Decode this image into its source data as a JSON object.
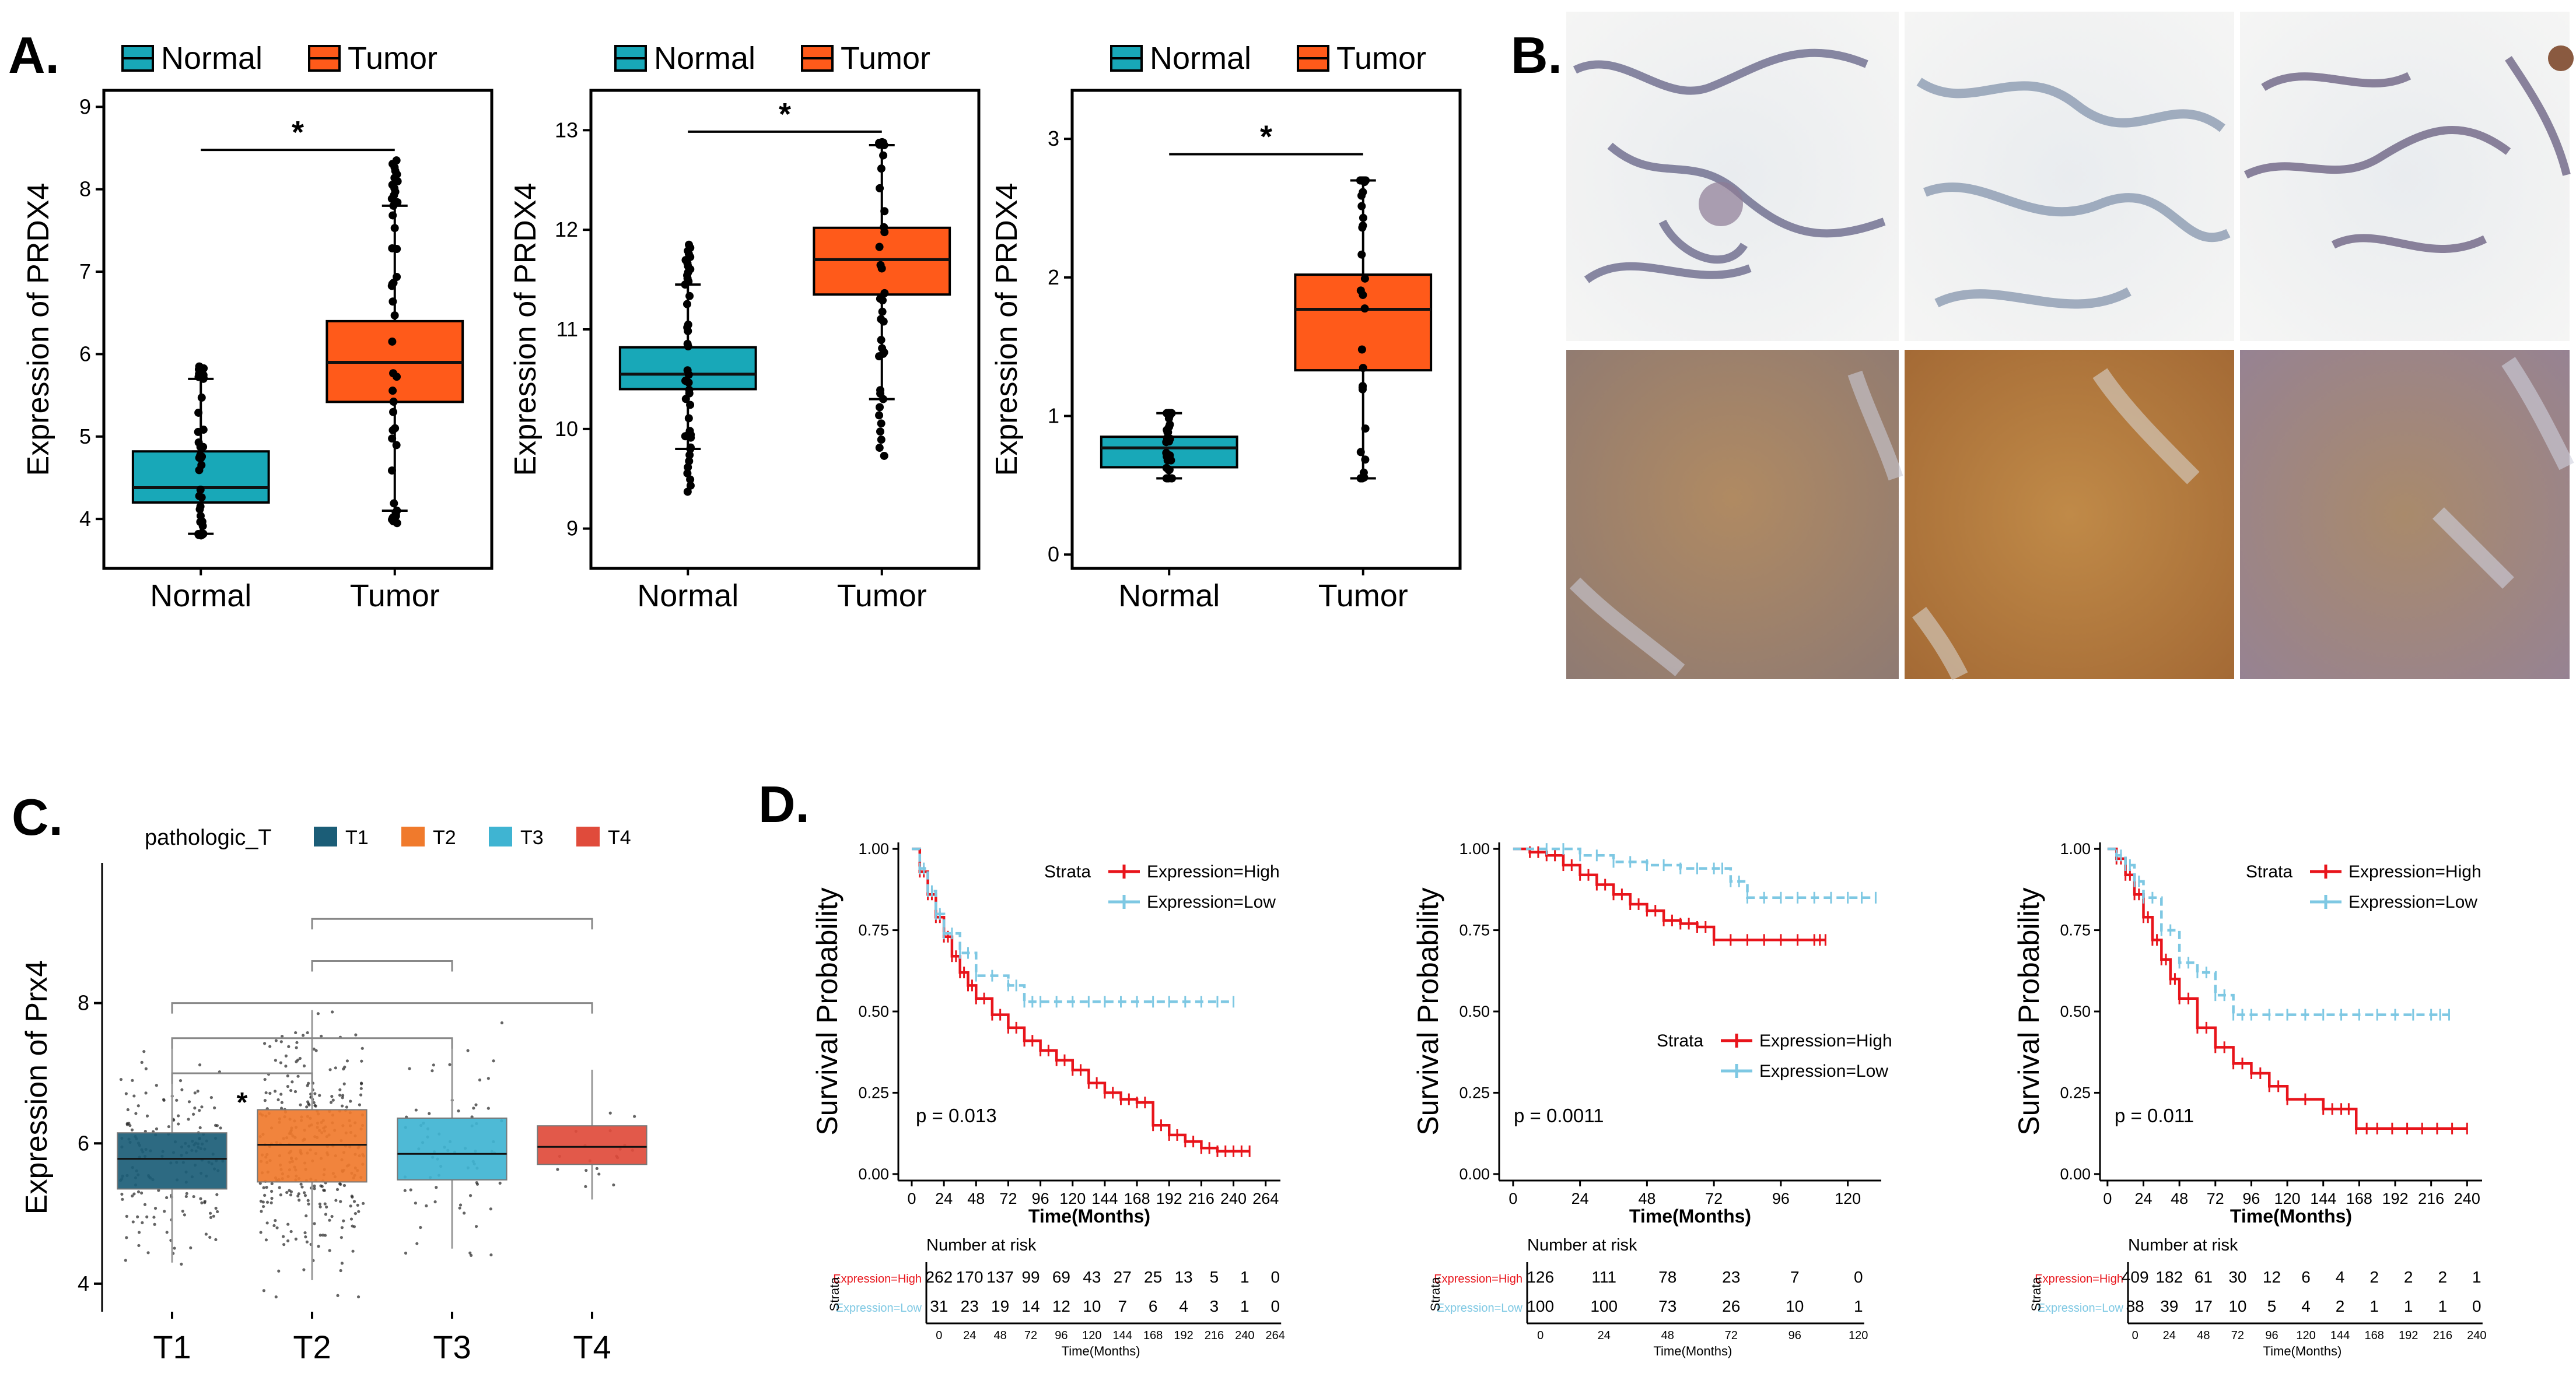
{
  "panel_labels": {
    "a": "A.",
    "b": "B.",
    "c": "C.",
    "d": "D."
  },
  "colors": {
    "normal": "#18a8b8",
    "tumor": "#ff5a1a",
    "t1": "#1b5d77",
    "t2": "#f07a2c",
    "t3": "#3fb4d2",
    "t4": "#e04b3b",
    "high": "#e8141b",
    "low": "#7ec8e3"
  },
  "ihc_images": {
    "top_row": [
      "normal-lung-ihc-1",
      "normal-lung-ihc-2",
      "normal-lung-ihc-3"
    ],
    "bottom_row": [
      "tumor-ihc-1",
      "tumor-ihc-2",
      "tumor-ihc-3"
    ]
  },
  "chart_data": [
    {
      "type": "box",
      "id": "A1",
      "legend": [
        "Normal",
        "Tumor"
      ],
      "ylabel": "Expression of PRDX4",
      "categories": [
        "Normal",
        "Tumor"
      ],
      "ylim": [
        3.4,
        9.2
      ],
      "yticks": [
        4,
        5,
        6,
        7,
        8,
        9
      ],
      "boxes": [
        {
          "q1": 4.2,
          "median": 4.38,
          "q3": 4.82,
          "lo": 3.82,
          "hi": 5.7
        },
        {
          "q1": 5.42,
          "median": 5.9,
          "q3": 6.4,
          "lo": 4.1,
          "hi": 7.8
        }
      ],
      "outlier_hi": [
        5.85,
        8.35
      ],
      "outlier_lo": [
        3.8,
        3.95
      ],
      "signif": "*"
    },
    {
      "type": "box",
      "id": "A2",
      "legend": [
        "Normal",
        "Tumor"
      ],
      "ylabel": "Expression of PRDX4",
      "categories": [
        "Normal",
        "Tumor"
      ],
      "ylim": [
        8.6,
        13.4
      ],
      "yticks": [
        9,
        10,
        11,
        12,
        13
      ],
      "boxes": [
        {
          "q1": 10.4,
          "median": 10.55,
          "q3": 10.82,
          "lo": 9.8,
          "hi": 11.45
        },
        {
          "q1": 11.35,
          "median": 11.7,
          "q3": 12.02,
          "lo": 10.3,
          "hi": 12.85
        }
      ],
      "outlier_hi": [
        11.85,
        12.88
      ],
      "outlier_lo": [
        9.37,
        9.73
      ],
      "signif": "*"
    },
    {
      "type": "box",
      "id": "A3",
      "legend": [
        "Normal",
        "Tumor"
      ],
      "ylabel": "Expression of PRDX4",
      "categories": [
        "Normal",
        "Tumor"
      ],
      "ylim": [
        -0.1,
        3.35
      ],
      "yticks": [
        0,
        1,
        2,
        3
      ],
      "boxes": [
        {
          "q1": 0.63,
          "median": 0.77,
          "q3": 0.85,
          "lo": 0.55,
          "hi": 1.02
        },
        {
          "q1": 1.33,
          "median": 1.77,
          "q3": 2.02,
          "lo": 0.55,
          "hi": 2.7
        }
      ],
      "signif": "*"
    },
    {
      "type": "box",
      "id": "C",
      "legend_title": "pathologic_T",
      "legend": [
        "T1",
        "T2",
        "T3",
        "T4"
      ],
      "ylabel": "Expression of Prx4",
      "categories": [
        "T1",
        "T2",
        "T3",
        "T4"
      ],
      "ylim": [
        3.6,
        10.0
      ],
      "yticks": [
        4,
        6,
        8
      ],
      "boxes": [
        {
          "q1": 5.35,
          "median": 5.78,
          "q3": 6.15,
          "lo": 4.3,
          "hi": 7.5
        },
        {
          "q1": 5.45,
          "median": 5.98,
          "q3": 6.48,
          "lo": 4.05,
          "hi": 7.9
        },
        {
          "q1": 5.48,
          "median": 5.85,
          "q3": 6.36,
          "lo": 4.5,
          "hi": 7.4
        },
        {
          "q1": 5.7,
          "median": 5.95,
          "q3": 6.25,
          "lo": 5.2,
          "hi": 7.05
        }
      ],
      "comparisons": [
        {
          "from": 0,
          "to": 1,
          "y": 7.0,
          "label": "*"
        },
        {
          "from": 0,
          "to": 2,
          "y": 7.5,
          "label": ""
        },
        {
          "from": 0,
          "to": 3,
          "y": 8.0,
          "label": ""
        },
        {
          "from": 1,
          "to": 2,
          "y": 8.6,
          "label": ""
        },
        {
          "from": 1,
          "to": 3,
          "y": 9.2,
          "label": ""
        }
      ]
    },
    {
      "type": "line",
      "id": "D1",
      "ylabel": "Survival Probability",
      "xlabel": "Time(Months)",
      "legend_title": "Strata",
      "legend": [
        "Expression=High",
        "Expression=Low"
      ],
      "xticks": [
        0,
        24,
        48,
        72,
        96,
        120,
        144,
        168,
        192,
        216,
        240,
        264
      ],
      "xlim": [
        -10,
        275
      ],
      "yticks": [
        "0.00",
        "0.25",
        "0.50",
        "0.75",
        "1.00"
      ],
      "pvalue": "p = 0.013",
      "series": [
        {
          "name": "Expression=High",
          "x": [
            0,
            6,
            12,
            18,
            24,
            30,
            36,
            42,
            48,
            60,
            72,
            84,
            96,
            108,
            120,
            132,
            144,
            156,
            168,
            180,
            192,
            204,
            216,
            228,
            240,
            252
          ],
          "y": [
            1.0,
            0.93,
            0.86,
            0.79,
            0.73,
            0.67,
            0.62,
            0.58,
            0.54,
            0.49,
            0.45,
            0.41,
            0.38,
            0.35,
            0.32,
            0.28,
            0.25,
            0.23,
            0.22,
            0.15,
            0.12,
            0.1,
            0.08,
            0.07,
            0.07,
            0.07
          ]
        },
        {
          "name": "Expression=Low",
          "x": [
            0,
            6,
            12,
            18,
            24,
            36,
            48,
            72,
            84,
            96,
            120,
            144,
            168,
            192,
            216,
            240
          ],
          "y": [
            1.0,
            0.94,
            0.87,
            0.8,
            0.74,
            0.68,
            0.61,
            0.58,
            0.53,
            0.53,
            0.53,
            0.53,
            0.53,
            0.53,
            0.53,
            0.53
          ]
        }
      ],
      "risk_table": {
        "title": "Number at risk",
        "row_label": "Strata",
        "xlabel": "Time(Months)",
        "rows": [
          {
            "name": "Expression=High",
            "values": [
              "262",
              "170",
              "137",
              "99",
              "69",
              "43",
              "27",
              "25",
              "13",
              "5",
              "1",
              "0"
            ]
          },
          {
            "name": "Expression=Low",
            "values": [
              "31",
              "23",
              "19",
              "14",
              "12",
              "10",
              "7",
              "6",
              "4",
              "3",
              "1",
              "0"
            ]
          }
        ]
      }
    },
    {
      "type": "line",
      "id": "D2",
      "ylabel": "Survival Probability",
      "xlabel": "Time(Months)",
      "legend_title": "Strata",
      "legend": [
        "Expression=High",
        "Expression=Low"
      ],
      "xticks": [
        0,
        24,
        48,
        72,
        96,
        120
      ],
      "xlim": [
        -5,
        132
      ],
      "yticks": [
        "0.00",
        "0.25",
        "0.50",
        "0.75",
        "1.00"
      ],
      "pvalue": "p = 0.0011",
      "series": [
        {
          "name": "Expression=High",
          "x": [
            0,
            6,
            12,
            18,
            24,
            30,
            36,
            42,
            48,
            54,
            60,
            66,
            72,
            84,
            96,
            108,
            112
          ],
          "y": [
            1.0,
            0.99,
            0.98,
            0.95,
            0.92,
            0.89,
            0.86,
            0.83,
            0.81,
            0.78,
            0.77,
            0.76,
            0.72,
            0.72,
            0.72,
            0.72,
            0.72
          ]
        },
        {
          "name": "Expression=Low",
          "x": [
            0,
            12,
            24,
            36,
            48,
            60,
            72,
            78,
            84,
            96,
            108,
            120,
            130
          ],
          "y": [
            1.0,
            1.0,
            0.98,
            0.96,
            0.95,
            0.94,
            0.94,
            0.9,
            0.85,
            0.85,
            0.85,
            0.85,
            0.85
          ]
        }
      ],
      "risk_table": {
        "title": "Number at risk",
        "row_label": "Strata",
        "xlabel": "Time(Months)",
        "rows": [
          {
            "name": "Expression=High",
            "values": [
              "126",
              "111",
              "78",
              "23",
              "7",
              "0"
            ]
          },
          {
            "name": "Expression=Low",
            "values": [
              "100",
              "100",
              "73",
              "26",
              "10",
              "1"
            ]
          }
        ]
      }
    },
    {
      "type": "line",
      "id": "D3",
      "ylabel": "Survival Probability",
      "xlabel": "Time(Months)",
      "legend_title": "Strata",
      "legend": [
        "Expression=High",
        "Expression=Low"
      ],
      "xticks": [
        0,
        24,
        48,
        72,
        96,
        120,
        144,
        168,
        192,
        216,
        240
      ],
      "xlim": [
        -5,
        250
      ],
      "yticks": [
        "0.00",
        "0.25",
        "0.50",
        "0.75",
        "1.00"
      ],
      "pvalue": "p = 0.011",
      "series": [
        {
          "name": "Expression=High",
          "x": [
            0,
            6,
            12,
            18,
            24,
            30,
            36,
            42,
            48,
            60,
            72,
            84,
            96,
            108,
            120,
            144,
            156,
            166,
            180,
            200,
            220,
            240
          ],
          "y": [
            1.0,
            0.97,
            0.92,
            0.86,
            0.79,
            0.72,
            0.66,
            0.6,
            0.54,
            0.45,
            0.39,
            0.34,
            0.31,
            0.27,
            0.23,
            0.2,
            0.2,
            0.14,
            0.14,
            0.14,
            0.14,
            0.14
          ]
        },
        {
          "name": "Expression=Low",
          "x": [
            0,
            6,
            12,
            18,
            24,
            36,
            48,
            60,
            72,
            84,
            96,
            120,
            144,
            168,
            192,
            216,
            228
          ],
          "y": [
            1.0,
            0.98,
            0.95,
            0.9,
            0.85,
            0.75,
            0.65,
            0.62,
            0.55,
            0.49,
            0.49,
            0.49,
            0.49,
            0.49,
            0.49,
            0.49,
            0.49
          ]
        }
      ],
      "risk_table": {
        "title": "Number at risk",
        "row_label": "Strata",
        "xlabel": "Time(Months)",
        "rows": [
          {
            "name": "Expression=High",
            "values": [
              "409",
              "182",
              "61",
              "30",
              "12",
              "6",
              "4",
              "2",
              "2",
              "2",
              "1"
            ]
          },
          {
            "name": "Expression=Low",
            "values": [
              "88",
              "39",
              "17",
              "10",
              "5",
              "4",
              "2",
              "1",
              "1",
              "1",
              "0"
            ]
          }
        ]
      }
    }
  ]
}
